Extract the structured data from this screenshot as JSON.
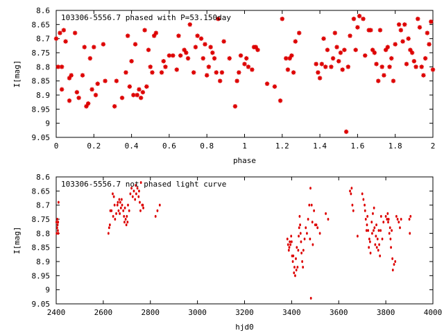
{
  "chart_data": [
    {
      "type": "scatter",
      "title": "103306-5556.7 phased with P=53.150day",
      "xlabel": "phase",
      "ylabel": "I[mag]",
      "xlim": [
        0,
        2
      ],
      "ylim": [
        9.05,
        8.6
      ],
      "y_reversed": true,
      "marker": "star",
      "color": "#dd0000",
      "x_ticks": [
        "0",
        "0.2",
        "0.4",
        "0.6",
        "0.8",
        "1",
        "1.2",
        "1.4",
        "1.6",
        "1.8",
        "2"
      ],
      "x_tick_values": [
        0,
        0.2,
        0.4,
        0.6,
        0.8,
        1,
        1.2,
        1.4,
        1.6,
        1.8,
        2
      ],
      "y_ticks": [
        "8.6",
        "8.65",
        "8.7",
        "8.75",
        "8.8",
        "8.85",
        "8.9",
        "8.95",
        "9",
        "9.05"
      ],
      "y_tick_values": [
        8.6,
        8.65,
        8.7,
        8.75,
        8.8,
        8.85,
        8.9,
        8.95,
        9.0,
        9.05
      ],
      "points": [
        [
          0.0,
          8.7
        ],
        [
          0.01,
          8.8
        ],
        [
          0.02,
          8.68
        ],
        [
          0.03,
          8.8
        ],
        [
          0.03,
          8.88
        ],
        [
          0.04,
          8.67
        ],
        [
          0.05,
          8.71
        ],
        [
          0.07,
          8.84
        ],
        [
          0.07,
          8.92
        ],
        [
          0.08,
          8.83
        ],
        [
          0.1,
          8.68
        ],
        [
          0.11,
          8.89
        ],
        [
          0.12,
          8.91
        ],
        [
          0.14,
          8.83
        ],
        [
          0.15,
          8.73
        ],
        [
          0.16,
          8.94
        ],
        [
          0.17,
          8.93
        ],
        [
          0.18,
          8.77
        ],
        [
          0.19,
          8.88
        ],
        [
          0.2,
          8.73
        ],
        [
          0.21,
          8.9
        ],
        [
          0.22,
          8.86
        ],
        [
          0.25,
          8.72
        ],
        [
          0.26,
          8.85
        ],
        [
          0.31,
          8.94
        ],
        [
          0.32,
          8.85
        ],
        [
          0.35,
          8.91
        ],
        [
          0.37,
          8.82
        ],
        [
          0.38,
          8.69
        ],
        [
          0.39,
          8.87
        ],
        [
          0.4,
          8.78
        ],
        [
          0.41,
          8.9
        ],
        [
          0.42,
          8.72
        ],
        [
          0.43,
          8.9
        ],
        [
          0.44,
          8.88
        ],
        [
          0.45,
          8.91
        ],
        [
          0.46,
          8.89
        ],
        [
          0.47,
          8.67
        ],
        [
          0.48,
          8.87
        ],
        [
          0.49,
          8.74
        ],
        [
          0.5,
          8.8
        ],
        [
          0.51,
          8.82
        ],
        [
          0.52,
          8.69
        ],
        [
          0.53,
          8.68
        ],
        [
          0.56,
          8.82
        ],
        [
          0.57,
          8.78
        ],
        [
          0.58,
          8.8
        ],
        [
          0.6,
          8.76
        ],
        [
          0.62,
          8.76
        ],
        [
          0.64,
          8.81
        ],
        [
          0.65,
          8.69
        ],
        [
          0.66,
          8.76
        ],
        [
          0.68,
          8.74
        ],
        [
          0.69,
          8.75
        ],
        [
          0.7,
          8.77
        ],
        [
          0.71,
          8.65
        ],
        [
          0.73,
          8.82
        ],
        [
          0.74,
          8.73
        ],
        [
          0.75,
          8.69
        ],
        [
          0.77,
          8.7
        ],
        [
          0.78,
          8.77
        ],
        [
          0.79,
          8.72
        ],
        [
          0.8,
          8.83
        ],
        [
          0.81,
          8.8
        ],
        [
          0.82,
          8.73
        ],
        [
          0.83,
          8.75
        ],
        [
          0.84,
          8.77
        ],
        [
          0.85,
          8.82
        ],
        [
          0.86,
          8.63
        ],
        [
          0.87,
          8.85
        ],
        [
          0.88,
          8.82
        ],
        [
          0.89,
          8.71
        ],
        [
          0.92,
          8.77
        ],
        [
          0.95,
          8.94
        ],
        [
          0.96,
          8.85
        ],
        [
          0.97,
          8.82
        ],
        [
          0.98,
          8.76
        ],
        [
          1.0,
          8.79
        ],
        [
          1.01,
          8.77
        ],
        [
          1.02,
          8.8
        ],
        [
          1.04,
          8.81
        ],
        [
          1.05,
          8.73
        ],
        [
          1.06,
          8.73
        ],
        [
          1.07,
          8.74
        ],
        [
          1.12,
          8.86
        ],
        [
          1.16,
          8.87
        ],
        [
          1.19,
          8.92
        ],
        [
          1.2,
          8.63
        ],
        [
          1.22,
          8.77
        ],
        [
          1.23,
          8.81
        ],
        [
          1.24,
          8.77
        ],
        [
          1.25,
          8.76
        ],
        [
          1.26,
          8.82
        ],
        [
          1.27,
          8.71
        ],
        [
          1.29,
          8.68
        ],
        [
          1.38,
          8.79
        ],
        [
          1.39,
          8.82
        ],
        [
          1.4,
          8.84
        ],
        [
          1.41,
          8.79
        ],
        [
          1.42,
          8.7
        ],
        [
          1.43,
          8.8
        ],
        [
          1.44,
          8.74
        ],
        [
          1.46,
          8.8
        ],
        [
          1.47,
          8.77
        ],
        [
          1.48,
          8.68
        ],
        [
          1.49,
          8.73
        ],
        [
          1.5,
          8.78
        ],
        [
          1.51,
          8.75
        ],
        [
          1.52,
          8.81
        ],
        [
          1.53,
          8.74
        ],
        [
          1.54,
          9.03
        ],
        [
          1.55,
          8.8
        ],
        [
          1.56,
          8.69
        ],
        [
          1.58,
          8.63
        ],
        [
          1.59,
          8.74
        ],
        [
          1.6,
          8.66
        ],
        [
          1.61,
          8.62
        ],
        [
          1.63,
          8.63
        ],
        [
          1.64,
          8.76
        ],
        [
          1.66,
          8.67
        ],
        [
          1.67,
          8.67
        ],
        [
          1.68,
          8.74
        ],
        [
          1.69,
          8.75
        ],
        [
          1.7,
          8.79
        ],
        [
          1.71,
          8.85
        ],
        [
          1.72,
          8.67
        ],
        [
          1.73,
          8.8
        ],
        [
          1.74,
          8.83
        ],
        [
          1.75,
          8.74
        ],
        [
          1.76,
          8.73
        ],
        [
          1.77,
          8.8
        ],
        [
          1.78,
          8.77
        ],
        [
          1.79,
          8.85
        ],
        [
          1.8,
          8.72
        ],
        [
          1.82,
          8.65
        ],
        [
          1.83,
          8.67
        ],
        [
          1.84,
          8.71
        ],
        [
          1.85,
          8.65
        ],
        [
          1.86,
          8.79
        ],
        [
          1.87,
          8.7
        ],
        [
          1.88,
          8.74
        ],
        [
          1.89,
          8.75
        ],
        [
          1.9,
          8.78
        ],
        [
          1.91,
          8.8
        ],
        [
          1.92,
          8.63
        ],
        [
          1.93,
          8.66
        ],
        [
          1.94,
          8.8
        ],
        [
          1.95,
          8.83
        ],
        [
          1.96,
          8.77
        ],
        [
          1.97,
          8.68
        ],
        [
          1.98,
          8.72
        ],
        [
          1.99,
          8.64
        ],
        [
          2.0,
          8.81
        ]
      ]
    },
    {
      "type": "scatter",
      "title": "103306-5556.7 not phased light curve",
      "xlabel": "hjd0",
      "ylabel": "I[mag]",
      "xlim": [
        2400,
        4000
      ],
      "ylim": [
        9.05,
        8.6
      ],
      "y_reversed": true,
      "marker": "dot",
      "color": "#dd0000",
      "x_ticks": [
        "2400",
        "2600",
        "2800",
        "3000",
        "3200",
        "3400",
        "3600",
        "3800",
        "4000"
      ],
      "x_tick_values": [
        2400,
        2600,
        2800,
        3000,
        3200,
        3400,
        3600,
        3800,
        4000
      ],
      "y_ticks": [
        "8.6",
        "8.65",
        "8.7",
        "8.75",
        "8.8",
        "8.85",
        "8.9",
        "8.95",
        "9",
        "9.05"
      ],
      "y_tick_values": [
        8.6,
        8.65,
        8.7,
        8.75,
        8.8,
        8.85,
        8.9,
        8.95,
        9.0,
        9.05
      ],
      "points": [
        [
          2401,
          8.76
        ],
        [
          2402,
          8.8
        ],
        [
          2404,
          8.78
        ],
        [
          2405,
          8.75
        ],
        [
          2406,
          8.77
        ],
        [
          2407,
          8.79
        ],
        [
          2408,
          8.76
        ],
        [
          2409,
          8.8
        ],
        [
          2410,
          8.69
        ],
        [
          2622,
          8.8
        ],
        [
          2625,
          8.78
        ],
        [
          2628,
          8.77
        ],
        [
          2630,
          8.72
        ],
        [
          2635,
          8.72
        ],
        [
          2640,
          8.66
        ],
        [
          2642,
          8.74
        ],
        [
          2645,
          8.67
        ],
        [
          2648,
          8.7
        ],
        [
          2650,
          8.75
        ],
        [
          2655,
          8.73
        ],
        [
          2660,
          8.7
        ],
        [
          2662,
          8.69
        ],
        [
          2665,
          8.72
        ],
        [
          2668,
          8.68
        ],
        [
          2670,
          8.73
        ],
        [
          2672,
          8.69
        ],
        [
          2675,
          8.71
        ],
        [
          2678,
          8.68
        ],
        [
          2680,
          8.7
        ],
        [
          2685,
          8.72
        ],
        [
          2688,
          8.74
        ],
        [
          2690,
          8.76
        ],
        [
          2692,
          8.71
        ],
        [
          2695,
          8.75
        ],
        [
          2698,
          8.77
        ],
        [
          2700,
          8.74
        ],
        [
          2703,
          8.76
        ],
        [
          2705,
          8.7
        ],
        [
          2710,
          8.72
        ],
        [
          2715,
          8.66
        ],
        [
          2720,
          8.64
        ],
        [
          2725,
          8.67
        ],
        [
          2730,
          8.65
        ],
        [
          2735,
          8.68
        ],
        [
          2738,
          8.63
        ],
        [
          2740,
          8.66
        ],
        [
          2745,
          8.64
        ],
        [
          2750,
          8.67
        ],
        [
          2752,
          8.65
        ],
        [
          2755,
          8.69
        ],
        [
          2758,
          8.72
        ],
        [
          2760,
          8.62
        ],
        [
          2765,
          8.7
        ],
        [
          2768,
          8.7
        ],
        [
          2770,
          8.71
        ],
        [
          2822,
          8.74
        ],
        [
          2830,
          8.72
        ],
        [
          2840,
          8.7
        ],
        [
          3382,
          8.82
        ],
        [
          3385,
          8.84
        ],
        [
          3388,
          8.86
        ],
        [
          3390,
          8.85
        ],
        [
          3392,
          8.83
        ],
        [
          3395,
          8.84
        ],
        [
          3398,
          8.81
        ],
        [
          3400,
          8.83
        ],
        [
          3402,
          8.88
        ],
        [
          3405,
          8.9
        ],
        [
          3407,
          8.88
        ],
        [
          3410,
          8.94
        ],
        [
          3412,
          8.92
        ],
        [
          3415,
          8.95
        ],
        [
          3418,
          8.89
        ],
        [
          3420,
          8.93
        ],
        [
          3422,
          8.85
        ],
        [
          3425,
          8.92
        ],
        [
          3428,
          8.86
        ],
        [
          3430,
          8.81
        ],
        [
          3432,
          8.78
        ],
        [
          3434,
          8.74
        ],
        [
          3436,
          8.77
        ],
        [
          3438,
          8.8
        ],
        [
          3440,
          8.83
        ],
        [
          3442,
          8.87
        ],
        [
          3445,
          8.9
        ],
        [
          3448,
          8.92
        ],
        [
          3450,
          8.86
        ],
        [
          3455,
          8.82
        ],
        [
          3460,
          8.78
        ],
        [
          3465,
          8.8
        ],
        [
          3470,
          8.75
        ],
        [
          3475,
          8.7
        ],
        [
          3478,
          8.82
        ],
        [
          3480,
          8.64
        ],
        [
          3482,
          9.03
        ],
        [
          3485,
          8.7
        ],
        [
          3488,
          8.76
        ],
        [
          3490,
          8.84
        ],
        [
          3495,
          8.72
        ],
        [
          3500,
          8.77
        ],
        [
          3505,
          8.77
        ],
        [
          3510,
          8.78
        ],
        [
          3520,
          8.8
        ],
        [
          3545,
          8.73
        ],
        [
          3555,
          8.75
        ],
        [
          3648,
          8.65
        ],
        [
          3652,
          8.66
        ],
        [
          3655,
          8.64
        ],
        [
          3658,
          8.7
        ],
        [
          3662,
          8.72
        ],
        [
          3680,
          8.81
        ],
        [
          3700,
          8.66
        ],
        [
          3705,
          8.68
        ],
        [
          3710,
          8.7
        ],
        [
          3712,
          8.72
        ],
        [
          3715,
          8.75
        ],
        [
          3718,
          8.79
        ],
        [
          3720,
          8.77
        ],
        [
          3722,
          8.74
        ],
        [
          3725,
          8.79
        ],
        [
          3728,
          8.85
        ],
        [
          3730,
          8.82
        ],
        [
          3733,
          8.83
        ],
        [
          3735,
          8.87
        ],
        [
          3740,
          8.76
        ],
        [
          3742,
          8.8
        ],
        [
          3745,
          8.73
        ],
        [
          3748,
          8.79
        ],
        [
          3750,
          8.71
        ],
        [
          3752,
          8.78
        ],
        [
          3755,
          8.84
        ],
        [
          3758,
          8.81
        ],
        [
          3760,
          8.77
        ],
        [
          3762,
          8.85
        ],
        [
          3765,
          8.82
        ],
        [
          3768,
          8.86
        ],
        [
          3770,
          8.79
        ],
        [
          3772,
          8.84
        ],
        [
          3775,
          8.88
        ],
        [
          3778,
          8.79
        ],
        [
          3780,
          8.74
        ],
        [
          3785,
          8.82
        ],
        [
          3790,
          8.76
        ],
        [
          3800,
          8.74
        ],
        [
          3805,
          8.75
        ],
        [
          3808,
          8.73
        ],
        [
          3810,
          8.76
        ],
        [
          3812,
          8.75
        ],
        [
          3815,
          8.8
        ],
        [
          3818,
          8.78
        ],
        [
          3820,
          8.82
        ],
        [
          3822,
          8.85
        ],
        [
          3825,
          8.79
        ],
        [
          3828,
          8.89
        ],
        [
          3830,
          8.93
        ],
        [
          3835,
          8.91
        ],
        [
          3840,
          8.9
        ],
        [
          3845,
          8.74
        ],
        [
          3850,
          8.75
        ],
        [
          3855,
          8.76
        ],
        [
          3860,
          8.78
        ],
        [
          3865,
          8.75
        ],
        [
          3900,
          8.75
        ],
        [
          3902,
          8.8
        ],
        [
          3905,
          8.74
        ]
      ]
    }
  ]
}
